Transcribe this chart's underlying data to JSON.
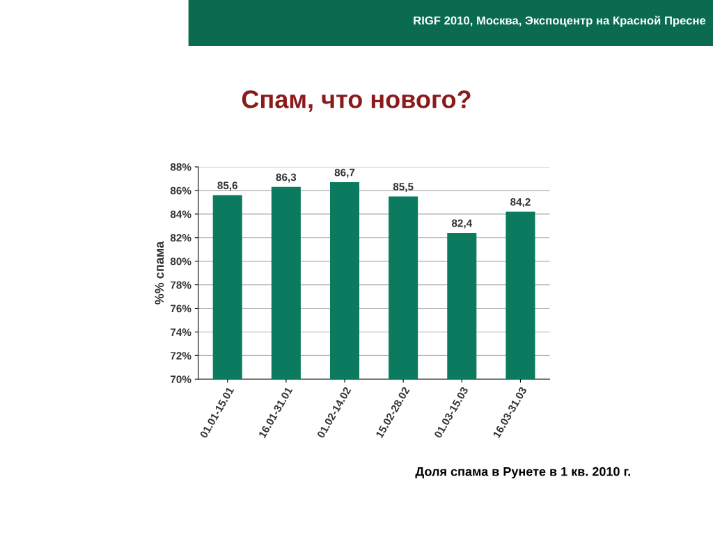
{
  "chart_data": {
    "type": "bar",
    "title": "Спам, что нового?",
    "ylabel": "%% спама",
    "annotations": [
      "RIGF 2010, Москва, Экспоцентр на Красной Пресне",
      "Доля спама в Рунете в 1 кв. 2010 г."
    ],
    "categories": [
      "01.01-15.01",
      "16.01-31.01",
      "01.02-14.02",
      "15.02-28.02",
      "01.03-15.03",
      "16.03-31.03"
    ],
    "values": [
      85.6,
      86.3,
      86.7,
      85.5,
      82.4,
      84.2
    ],
    "value_labels": [
      "85,6",
      "86,3",
      "86,7",
      "85,5",
      "82,4",
      "84,2"
    ],
    "color": "#0b7a5f",
    "ylim": [
      70,
      88
    ],
    "yticks": [
      {
        "value": 70,
        "label": "70%"
      },
      {
        "value": 72,
        "label": "72%"
      },
      {
        "value": 74,
        "label": "74%"
      },
      {
        "value": 76,
        "label": "76%"
      },
      {
        "value": 78,
        "label": "78%"
      },
      {
        "value": 80,
        "label": "80%"
      },
      {
        "value": 82,
        "label": "82%"
      },
      {
        "value": 84,
        "label": "84%"
      },
      {
        "value": 86,
        "label": "86%"
      },
      {
        "value": 88,
        "label": "88%"
      }
    ],
    "grid": "y",
    "legend": false
  }
}
